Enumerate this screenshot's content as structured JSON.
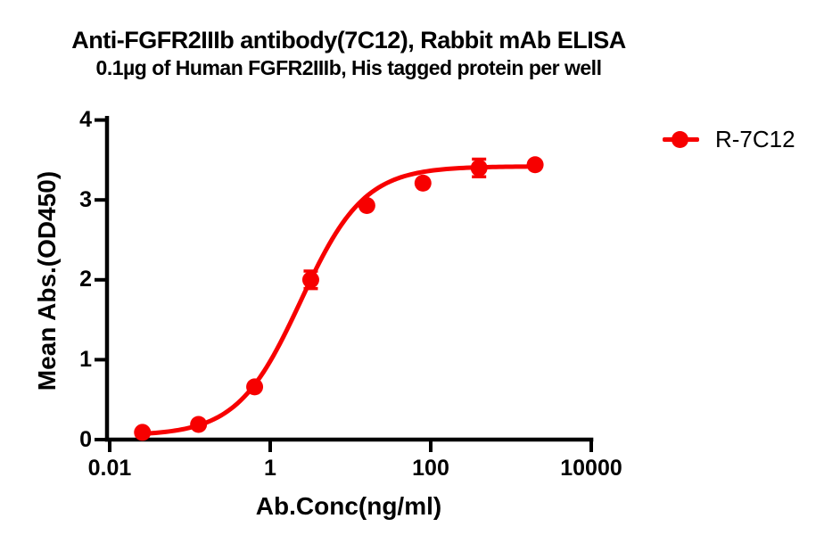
{
  "page": {
    "background": "#ffffff",
    "text_color": "#000000"
  },
  "chart_data": {
    "type": "scatter",
    "title": "Anti-FGFR2IIIb antibody(7C12), Rabbit mAb ELISA",
    "subtitle": "0.1µg of Human FGFR2IIIb, His tagged protein per well",
    "xlabel": "Ab.Conc(ng/ml)",
    "ylabel": "Mean Abs.(OD450)",
    "x_scale": "log10",
    "xlim": [
      0.01,
      10000
    ],
    "ylim": [
      0,
      4
    ],
    "grid": false,
    "x_ticks": [
      "0.01",
      "1",
      "100",
      "10000"
    ],
    "x_tick_values": [
      0.01,
      1,
      100,
      10000
    ],
    "y_ticks": [
      "0",
      "1",
      "2",
      "3",
      "4"
    ],
    "y_tick_values": [
      0,
      1,
      2,
      3,
      4
    ],
    "legend_position": "right-top",
    "axis_color": "#000000",
    "series": [
      {
        "name": "R-7C12",
        "color": "#F70000",
        "marker": "circle",
        "x": [
          0.0256,
          0.128,
          0.64,
          3.2,
          16,
          80,
          400,
          2000
        ],
        "y": [
          0.09,
          0.19,
          0.66,
          2.0,
          2.93,
          3.21,
          3.4,
          3.44
        ],
        "y_err": [
          0,
          0,
          0,
          0.11,
          0,
          0,
          0.11,
          0
        ],
        "fit": {
          "model": "4PL",
          "bottom": 0.05,
          "top": 3.42,
          "ec50": 2.4,
          "hill": 1.1
        }
      }
    ]
  }
}
